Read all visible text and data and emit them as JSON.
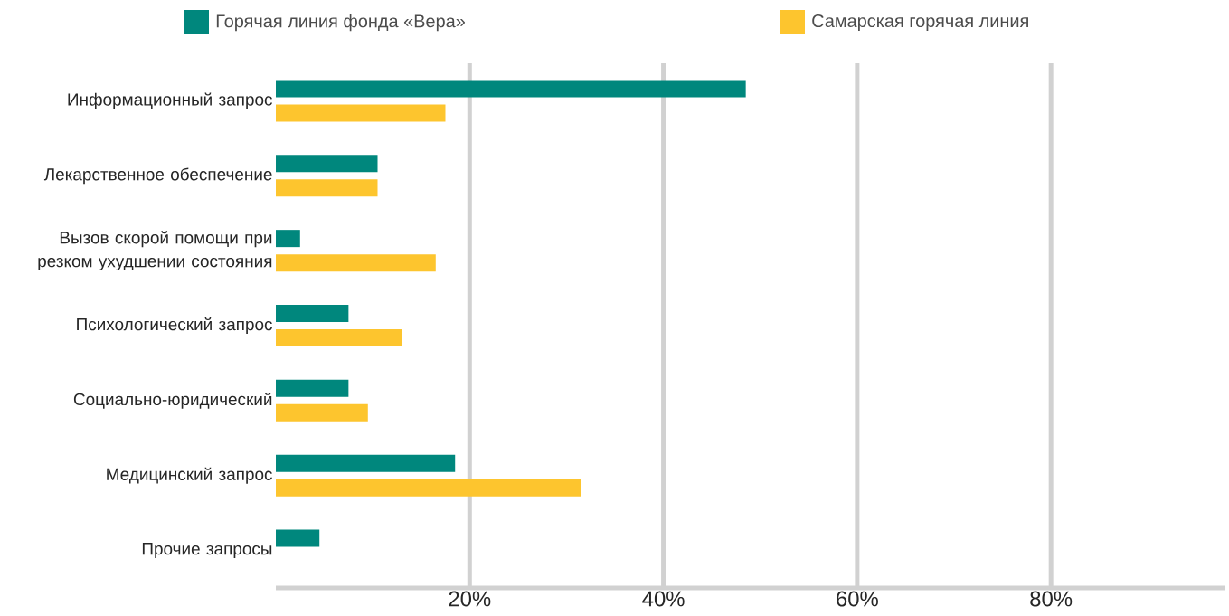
{
  "chart_data": {
    "type": "bar",
    "orientation": "horizontal",
    "categories": [
      "Информационный запрос",
      "Лекарственное обеспечение",
      "Вызов скорой помощи при резком ухудшении состояния",
      "Психологический запрос",
      "Социально-юридический",
      "Медицинский запрос",
      "Прочие запросы"
    ],
    "series": [
      {
        "name": "Горячая линия фонда «Вера»",
        "color": "#00877d",
        "values": [
          48.5,
          10.5,
          2.5,
          7.5,
          7.5,
          18.5,
          4.5
        ]
      },
      {
        "name": "Самарская горячая линия",
        "color": "#fdc52e",
        "values": [
          17.5,
          10.5,
          16.5,
          13,
          9.5,
          31.5,
          null
        ]
      }
    ],
    "xlim": [
      0,
      98
    ],
    "xticks": [
      {
        "value": 20,
        "label": "20%"
      },
      {
        "value": 40,
        "label": "40%"
      },
      {
        "value": 60,
        "label": "60%"
      },
      {
        "value": 80,
        "label": "80%"
      }
    ],
    "grid": "x",
    "legend": "top"
  }
}
